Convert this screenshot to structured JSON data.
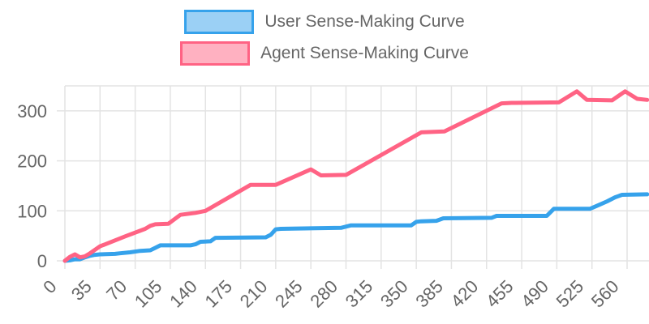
{
  "legend": {
    "position": "top",
    "items": [
      {
        "label": "User Sense-Making Curve",
        "border_color": "#36A2EB",
        "fill_color": "#9BD0F5"
      },
      {
        "label": "Agent Sense-Making Curve",
        "border_color": "#FF6384",
        "fill_color": "#FFB1C1"
      }
    ]
  },
  "colors": {
    "grid": "#E3E3E3",
    "tick_text": "#666666",
    "user_line": "#36A2EB",
    "agent_line": "#FF6384"
  },
  "chart_data": {
    "type": "line",
    "title": "",
    "xlabel": "",
    "ylabel": "",
    "grid": true,
    "legend_position": "top",
    "xlim": [
      0,
      582
    ],
    "ylim": [
      0,
      350
    ],
    "x_ticks": [
      0,
      35,
      70,
      105,
      140,
      175,
      210,
      245,
      280,
      315,
      350,
      385,
      420,
      455,
      490,
      525,
      560
    ],
    "y_ticks": [
      0,
      100,
      200,
      300
    ],
    "y_gridlines": [
      0,
      100,
      200,
      300,
      350
    ],
    "series": [
      {
        "name": "User Sense-Making Curve",
        "color": "#36A2EB",
        "points": [
          [
            0,
            0
          ],
          [
            5,
            1
          ],
          [
            10,
            3
          ],
          [
            15,
            3
          ],
          [
            20,
            7
          ],
          [
            25,
            10
          ],
          [
            30,
            12
          ],
          [
            35,
            13
          ],
          [
            50,
            14
          ],
          [
            55,
            15
          ],
          [
            65,
            17
          ],
          [
            75,
            20
          ],
          [
            85,
            21
          ],
          [
            90,
            26
          ],
          [
            95,
            31
          ],
          [
            125,
            31
          ],
          [
            130,
            33
          ],
          [
            135,
            38
          ],
          [
            145,
            39
          ],
          [
            150,
            46
          ],
          [
            200,
            47
          ],
          [
            205,
            52
          ],
          [
            210,
            63
          ],
          [
            215,
            64
          ],
          [
            275,
            66
          ],
          [
            285,
            71
          ],
          [
            345,
            71
          ],
          [
            350,
            78
          ],
          [
            355,
            79
          ],
          [
            370,
            80
          ],
          [
            377,
            85
          ],
          [
            425,
            86
          ],
          [
            430,
            90
          ],
          [
            480,
            90
          ],
          [
            487,
            104
          ],
          [
            523,
            104
          ],
          [
            530,
            110
          ],
          [
            540,
            119
          ],
          [
            548,
            127
          ],
          [
            555,
            132
          ],
          [
            580,
            133
          ]
        ]
      },
      {
        "name": "Agent Sense-Making Curve",
        "color": "#FF6384",
        "points": [
          [
            0,
            0
          ],
          [
            5,
            8
          ],
          [
            10,
            13
          ],
          [
            15,
            7
          ],
          [
            20,
            9
          ],
          [
            25,
            15
          ],
          [
            35,
            29
          ],
          [
            60,
            49
          ],
          [
            80,
            64
          ],
          [
            85,
            70
          ],
          [
            90,
            73
          ],
          [
            103,
            74
          ],
          [
            115,
            92
          ],
          [
            130,
            96
          ],
          [
            140,
            100
          ],
          [
            185,
            152
          ],
          [
            210,
            152
          ],
          [
            245,
            183
          ],
          [
            255,
            171
          ],
          [
            280,
            172
          ],
          [
            355,
            257
          ],
          [
            378,
            259
          ],
          [
            435,
            315
          ],
          [
            445,
            316
          ],
          [
            492,
            317
          ],
          [
            510,
            339
          ],
          [
            520,
            322
          ],
          [
            545,
            321
          ],
          [
            558,
            339
          ],
          [
            570,
            324
          ],
          [
            580,
            322
          ]
        ]
      }
    ]
  }
}
